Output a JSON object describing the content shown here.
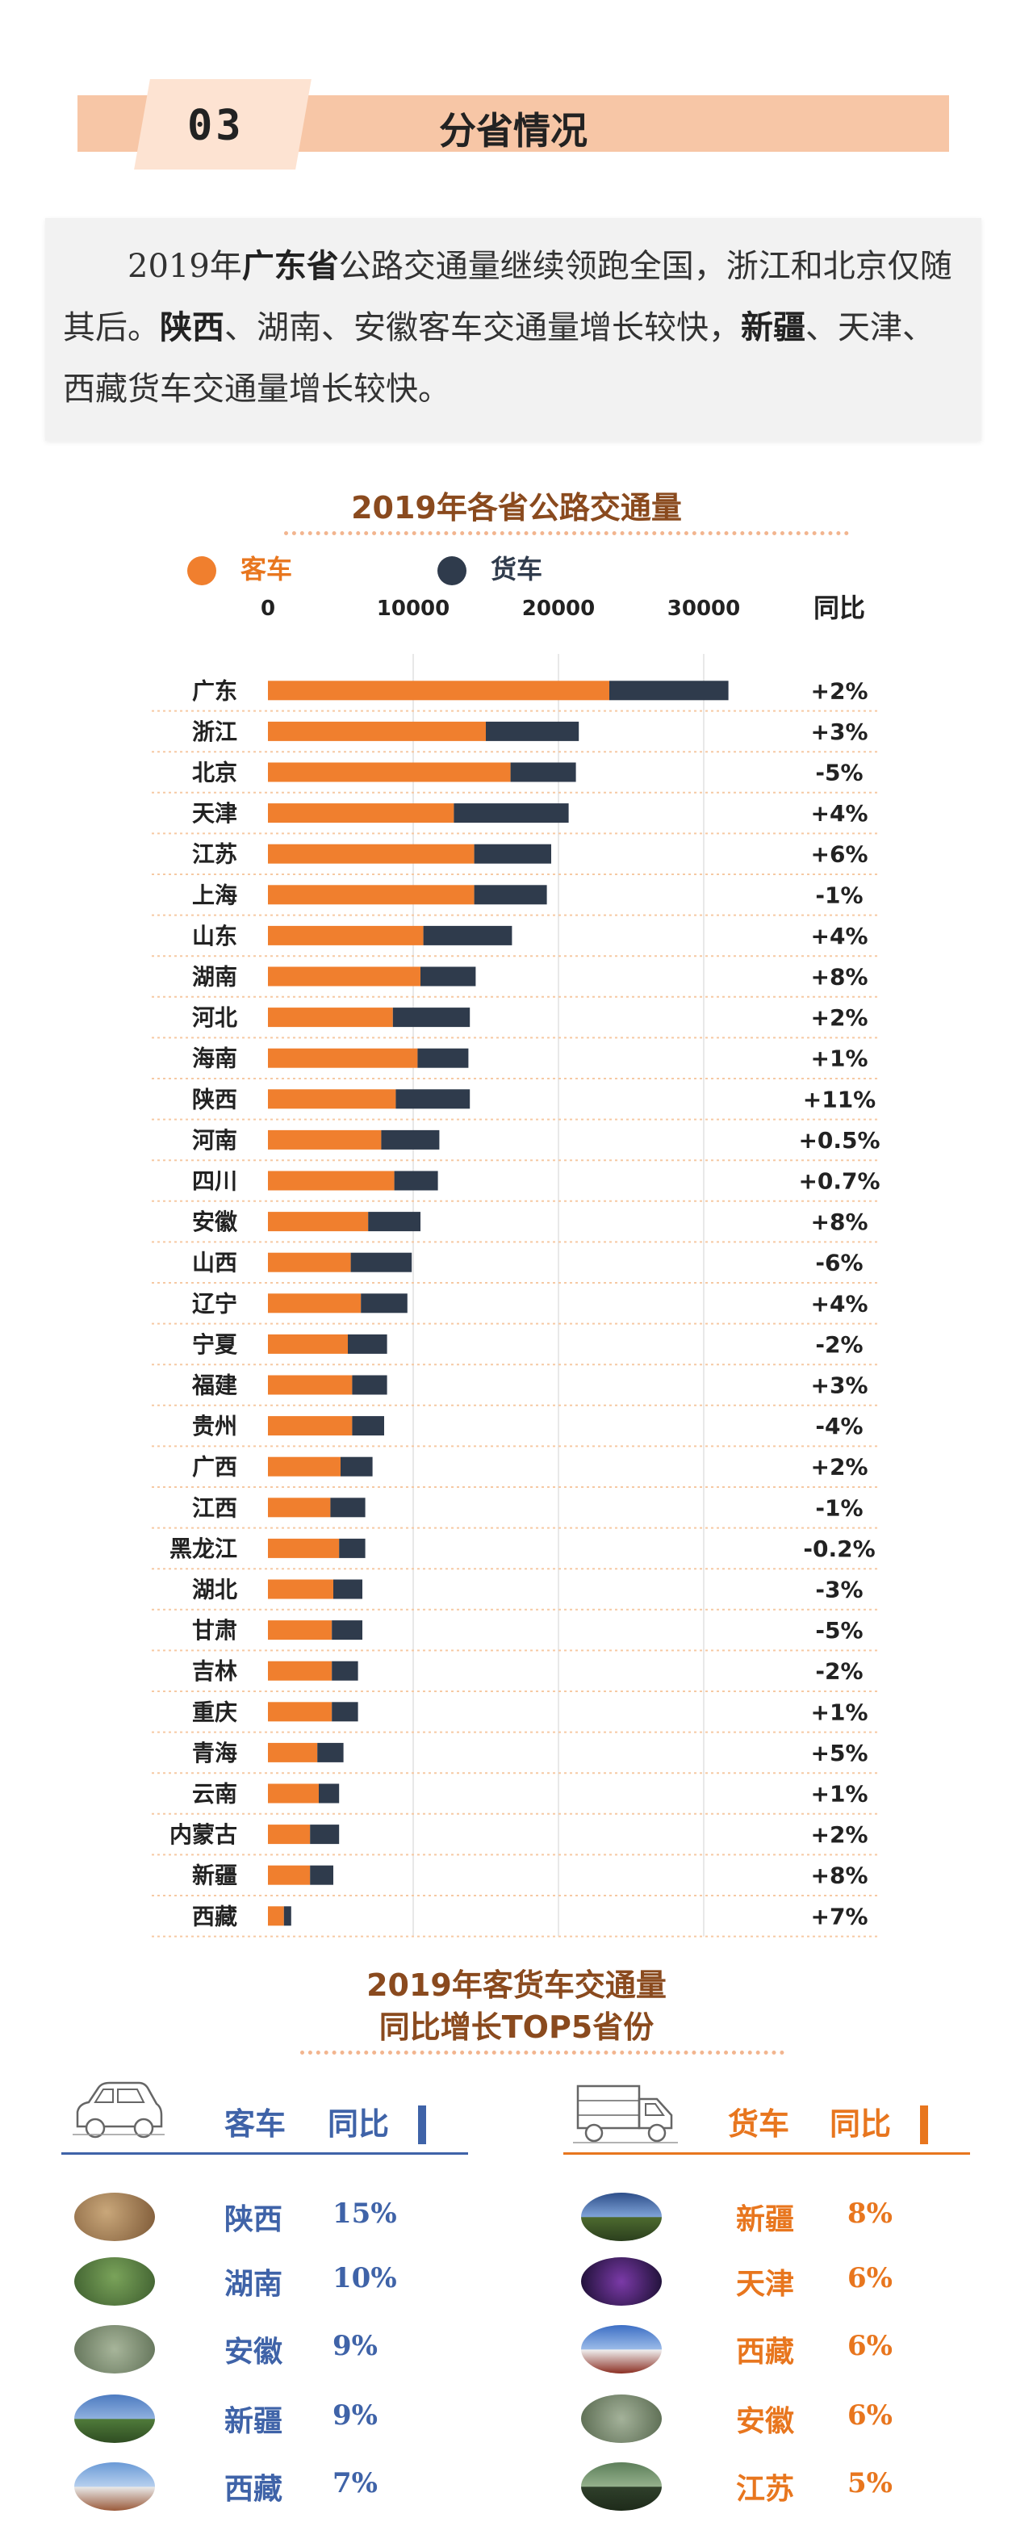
{
  "section": {
    "number": "03",
    "title": "分省情况"
  },
  "intro": {
    "segments": [
      {
        "text": "2019年",
        "bold": false
      },
      {
        "text": "广东省",
        "bold": true
      },
      {
        "text": "公路交通量继续领跑全国，浙江和北京仅随其后。",
        "bold": false
      },
      {
        "text": "陕西",
        "bold": true
      },
      {
        "text": "、湖南、安徽客车交通量增长较快，",
        "bold": false
      },
      {
        "text": "新疆",
        "bold": true
      },
      {
        "text": "、天津、西藏货车交通量增长较快。",
        "bold": false
      }
    ]
  },
  "chart_data": {
    "type": "bar",
    "stacked": true,
    "orientation": "horizontal",
    "title": "2019年各省公路交通量",
    "legend": [
      {
        "name": "客车",
        "color": "#f07f2e"
      },
      {
        "name": "货车",
        "color": "#2f3b4c"
      }
    ],
    "xticks": [
      "0",
      "10000",
      "20000",
      "30000"
    ],
    "xlim": [
      0,
      40000
    ],
    "yoy_header": "同比",
    "categories": [
      "广东",
      "浙江",
      "北京",
      "天津",
      "江苏",
      "上海",
      "山东",
      "湖南",
      "河北",
      "海南",
      "陕西",
      "河南",
      "四川",
      "安徽",
      "山西",
      "辽宁",
      "宁夏",
      "福建",
      "贵州",
      "广西",
      "江西",
      "黑龙江",
      "湖北",
      "甘肃",
      "吉林",
      "重庆",
      "青海",
      "云南",
      "内蒙古",
      "新疆",
      "西藏"
    ],
    "series": [
      {
        "name": "客车",
        "values": [
          23500,
          15000,
          16700,
          12800,
          14200,
          14200,
          10700,
          10500,
          8600,
          10300,
          8800,
          7800,
          8700,
          6900,
          5700,
          6400,
          5500,
          5800,
          5800,
          5000,
          4300,
          4900,
          4500,
          4400,
          4400,
          4400,
          3400,
          3500,
          2900,
          2900,
          1100
        ]
      },
      {
        "name": "货车",
        "values": [
          8200,
          6400,
          4500,
          7900,
          5300,
          5000,
          6100,
          3800,
          5300,
          3500,
          5100,
          4000,
          3000,
          3600,
          4200,
          3200,
          2700,
          2400,
          2200,
          2200,
          2400,
          1800,
          2000,
          2100,
          1800,
          1800,
          1800,
          1400,
          2000,
          1600,
          500
        ]
      }
    ],
    "yoy": [
      "+2%",
      "+3%",
      "-5%",
      "+4%",
      "+6%",
      "-1%",
      "+4%",
      "+8%",
      "+2%",
      "+1%",
      "+11%",
      "+0.5%",
      "+0.7%",
      "+8%",
      "-6%",
      "+4%",
      "-2%",
      "+3%",
      "-4%",
      "+2%",
      "-1%",
      "-0.2%",
      "-3%",
      "-5%",
      "-2%",
      "+1%",
      "+5%",
      "+1%",
      "+2%",
      "+8%",
      "+7%"
    ]
  },
  "top5": {
    "title_line1": "2019年客货车交通量",
    "title_line2": "同比增长TOP5省份",
    "passenger": {
      "header": "客车",
      "yoy_label": "同比",
      "color": "#3f63a8",
      "icon": "car-icon",
      "items": [
        {
          "province": "陕西",
          "value": "15%"
        },
        {
          "province": "湖南",
          "value": "10%"
        },
        {
          "province": "安徽",
          "value": "9%"
        },
        {
          "province": "新疆",
          "value": "9%"
        },
        {
          "province": "西藏",
          "value": "7%"
        }
      ]
    },
    "freight": {
      "header": "货车",
      "yoy_label": "同比",
      "color": "#e8761e",
      "icon": "truck-icon",
      "items": [
        {
          "province": "新疆",
          "value": "8%"
        },
        {
          "province": "天津",
          "value": "6%"
        },
        {
          "province": "西藏",
          "value": "6%"
        },
        {
          "province": "安徽",
          "value": "6%"
        },
        {
          "province": "江苏",
          "value": "5%"
        }
      ]
    }
  }
}
